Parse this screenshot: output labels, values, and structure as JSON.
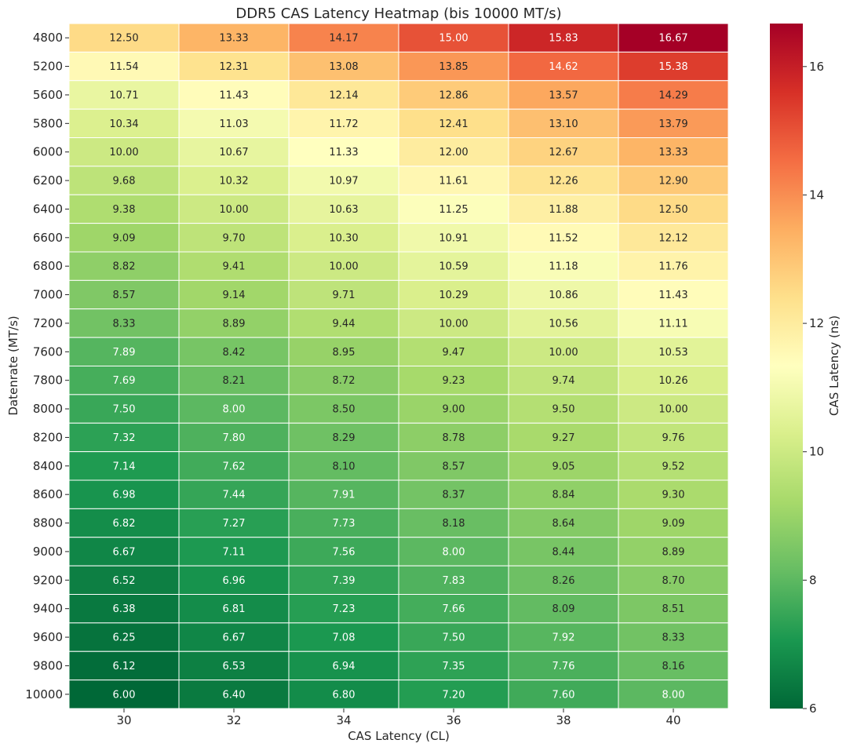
{
  "chart_data": {
    "type": "heatmap",
    "title": "DDR5 CAS Latency Heatmap (bis 10000 MT/s)",
    "xlabel": "CAS Latency (CL)",
    "ylabel": "Datenrate (MT/s)",
    "colorbar_label": "CAS Latency (ns)",
    "colormap": "RdYlGn_r",
    "color_range": [
      6,
      16.67
    ],
    "colorbar_ticks": [
      6,
      8,
      10,
      12,
      14,
      16
    ],
    "x_categories": [
      "30",
      "32",
      "34",
      "36",
      "38",
      "40"
    ],
    "y_categories": [
      "4800",
      "5200",
      "5600",
      "5800",
      "6000",
      "6200",
      "6400",
      "6600",
      "6800",
      "7000",
      "7200",
      "7600",
      "7800",
      "8000",
      "8200",
      "8400",
      "8600",
      "8800",
      "9000",
      "9200",
      "9400",
      "9600",
      "9800",
      "10000"
    ],
    "values": [
      [
        12.5,
        13.33,
        14.17,
        15.0,
        15.83,
        16.67
      ],
      [
        11.54,
        12.31,
        13.08,
        13.85,
        14.62,
        15.38
      ],
      [
        10.71,
        11.43,
        12.14,
        12.86,
        13.57,
        14.29
      ],
      [
        10.34,
        11.03,
        11.72,
        12.41,
        13.1,
        13.79
      ],
      [
        10.0,
        10.67,
        11.33,
        12.0,
        12.67,
        13.33
      ],
      [
        9.68,
        10.32,
        10.97,
        11.61,
        12.26,
        12.9
      ],
      [
        9.38,
        10.0,
        10.63,
        11.25,
        11.88,
        12.5
      ],
      [
        9.09,
        9.7,
        10.3,
        10.91,
        11.52,
        12.12
      ],
      [
        8.82,
        9.41,
        10.0,
        10.59,
        11.18,
        11.76
      ],
      [
        8.57,
        9.14,
        9.71,
        10.29,
        10.86,
        11.43
      ],
      [
        8.33,
        8.89,
        9.44,
        10.0,
        10.56,
        11.11
      ],
      [
        7.89,
        8.42,
        8.95,
        9.47,
        10.0,
        10.53
      ],
      [
        7.69,
        8.21,
        8.72,
        9.23,
        9.74,
        10.26
      ],
      [
        7.5,
        8.0,
        8.5,
        9.0,
        9.5,
        10.0
      ],
      [
        7.32,
        7.8,
        8.29,
        8.78,
        9.27,
        9.76
      ],
      [
        7.14,
        7.62,
        8.1,
        8.57,
        9.05,
        9.52
      ],
      [
        6.98,
        7.44,
        7.91,
        8.37,
        8.84,
        9.3
      ],
      [
        6.82,
        7.27,
        7.73,
        8.18,
        8.64,
        9.09
      ],
      [
        6.67,
        7.11,
        7.56,
        8.0,
        8.44,
        8.89
      ],
      [
        6.52,
        6.96,
        7.39,
        7.83,
        8.26,
        8.7
      ],
      [
        6.38,
        6.81,
        7.23,
        7.66,
        8.09,
        8.51
      ],
      [
        6.25,
        6.67,
        7.08,
        7.5,
        7.92,
        8.33
      ],
      [
        6.12,
        6.53,
        6.94,
        7.35,
        7.76,
        8.16
      ],
      [
        6.0,
        6.4,
        6.8,
        7.2,
        7.6,
        8.0
      ]
    ]
  }
}
